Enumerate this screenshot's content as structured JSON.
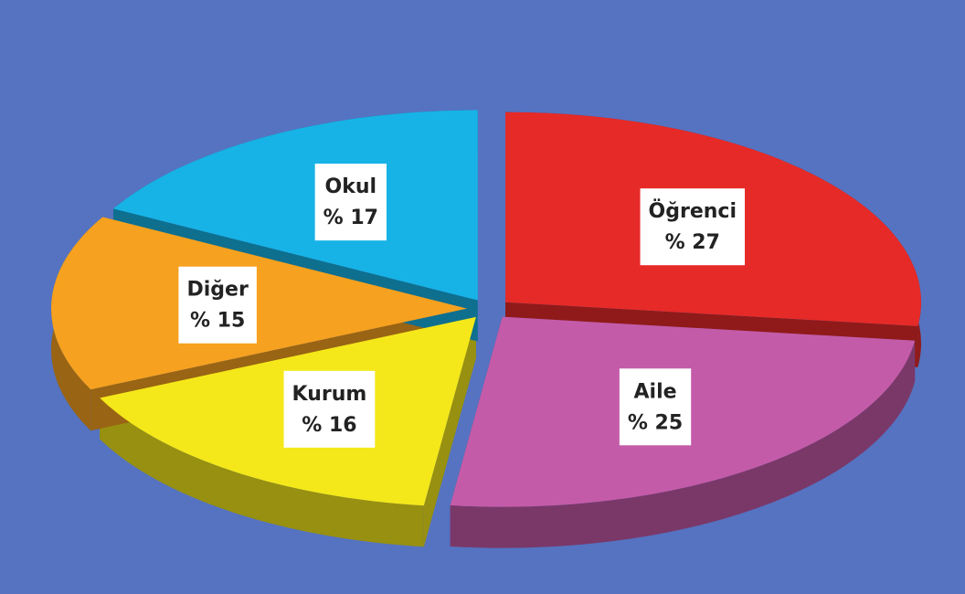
{
  "chart_data": {
    "type": "pie",
    "categories": [
      "Öğrenci",
      "Aile",
      "Kurum",
      "Diğer",
      "Okul"
    ],
    "values": [
      27,
      25,
      16,
      15,
      17
    ],
    "value_labels": [
      "% 27",
      "% 25",
      "% 16",
      "% 15",
      "% 17"
    ],
    "colors": [
      "#e62a28",
      "#c45ba9",
      "#f4e81a",
      "#f6a11f",
      "#17b3e6"
    ]
  }
}
